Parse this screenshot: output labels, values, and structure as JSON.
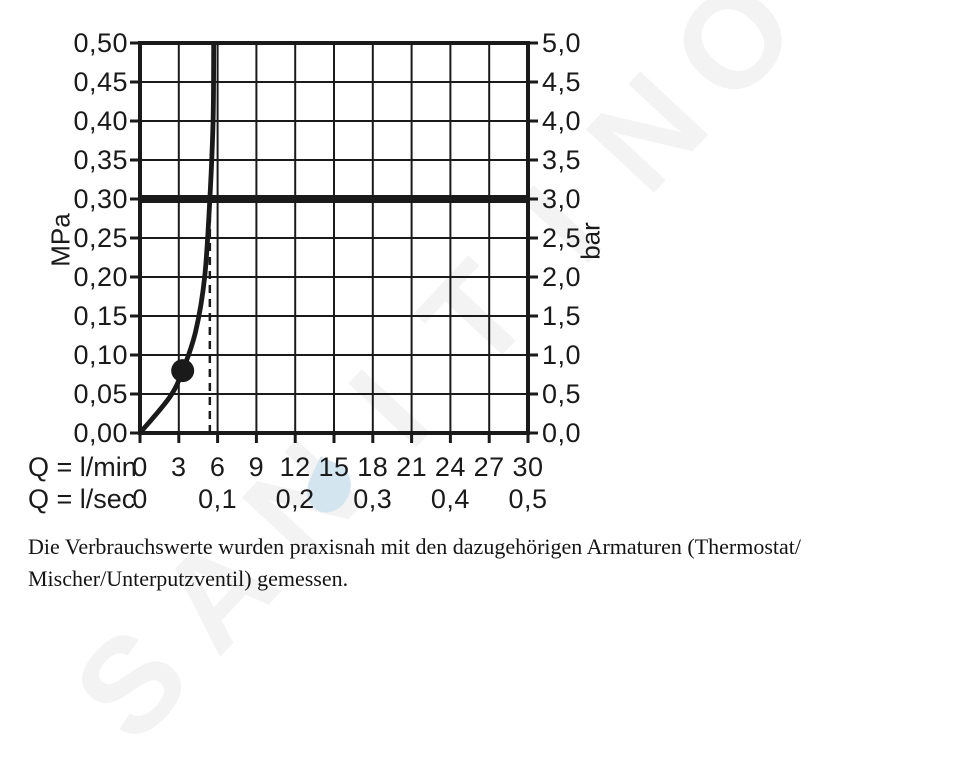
{
  "watermark": {
    "text": "SANITINO",
    "letters": [
      "S",
      "A",
      "N",
      "I",
      "T",
      "I",
      "N",
      "O"
    ],
    "letter_color": "#f3f3f3",
    "drop_color": "#d3e6f0"
  },
  "caption": {
    "line1": "Die Verbrauchswerte wurden praxisnah mit den dazugehörigen Armaturen (Thermostat/",
    "line2": "Mischer/Unterputzventil) gemessen."
  },
  "chart_data": {
    "type": "line",
    "title": "",
    "grid": true,
    "line_color": "#1a1a1a",
    "left_axis": {
      "unit": "MPa",
      "range": [
        0,
        0.5
      ],
      "tick_step": 0.05,
      "tick_labels": [
        "0,50",
        "0,45",
        "0,40",
        "0,35",
        "0,30",
        "0,25",
        "0,20",
        "0,15",
        "0,10",
        "0,05",
        "0,00"
      ]
    },
    "right_axis": {
      "unit": "bar",
      "range": [
        0,
        5.0
      ],
      "tick_step": 0.5,
      "tick_labels": [
        "5,0",
        "4,5",
        "4,0",
        "3,5",
        "3,0",
        "2,5",
        "2,0",
        "1,5",
        "1,0",
        "0,5",
        "0,0"
      ]
    },
    "x_axis_lmin": {
      "label": "Q = l/min",
      "range": [
        0,
        30
      ],
      "tick_step": 3,
      "tick_labels": [
        "0",
        "3",
        "6",
        "9",
        "12",
        "15",
        "18",
        "21",
        "24",
        "27",
        "30"
      ]
    },
    "x_axis_lsec": {
      "label": "Q = l/sec",
      "tick_labels": [
        "0",
        "0,1",
        "0,2",
        "0,3",
        "0,4",
        "0,5"
      ],
      "tick_positions_lmin": [
        0,
        6,
        12,
        18,
        24,
        30
      ]
    },
    "series": [
      {
        "name": "flow-pressure-curve",
        "points_q_lmin_p_mpa": [
          [
            0,
            0
          ],
          [
            2.3,
            0.046
          ],
          [
            3.3,
            0.08
          ],
          [
            4.3,
            0.13
          ],
          [
            5.0,
            0.2
          ],
          [
            5.4,
            0.3
          ],
          [
            5.65,
            0.4
          ],
          [
            5.7,
            0.5
          ]
        ]
      }
    ],
    "marker_point": {
      "q_lmin": 3.3,
      "p_mpa": 0.08
    },
    "reference_line": {
      "p_mpa": 0.3,
      "p_bar": 3.0
    },
    "dashed_guide_q_lmin": 5.4
  }
}
